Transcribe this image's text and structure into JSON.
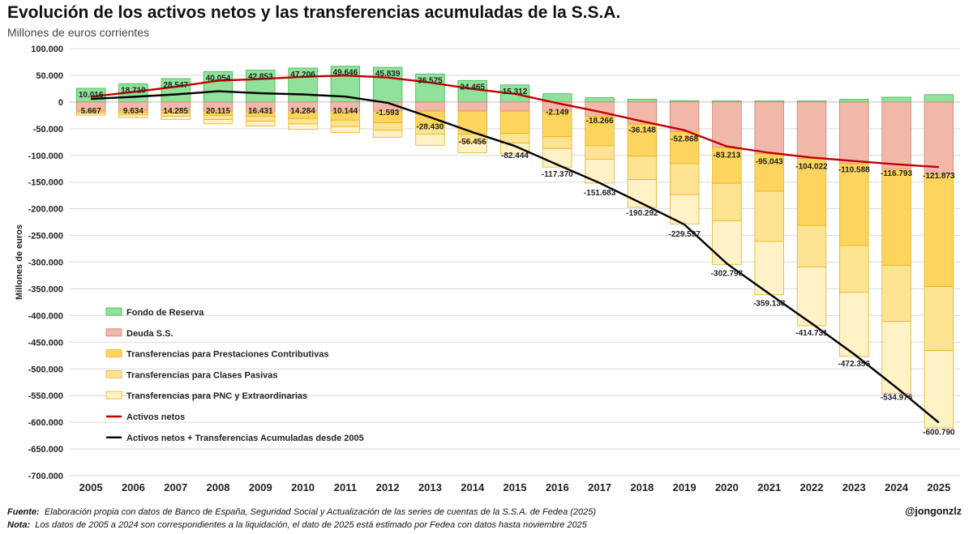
{
  "title": "Evolución de los activos netos y las transferencias acumuladas de la S.S.A.",
  "subtitle": "Millones de euros corrientes",
  "footer": {
    "source_label": "Fuente:",
    "source_text": "Elaboración propia con datos de Banco de España, Seguridad Social y Actualización de las series de cuentas de la S.S.A. de Fedea (2025)",
    "note_label": "Nota:",
    "note_text": "Los datos de 2005 a 2024 son correspondientes a la liquidación, el dato de 2025 está estimado por Fedea con datos hasta noviembre 2025",
    "handle": "@jongonzlz"
  },
  "colors": {
    "fondo": "#90e29a",
    "fondo_stroke": "#3fb64e",
    "deuda": "#f1b8aa",
    "deuda_stroke": "#c9806f",
    "contrib": "#fdd45e",
    "clases": "#fde392",
    "pnc": "#fef2c6",
    "transfer_stroke": "#e6b020",
    "activos_line": "#c00000",
    "acumuladas_line": "#000000",
    "grid": "#d9d9d9"
  },
  "chart_data": {
    "type": "bar",
    "title": "Evolución de los activos netos y las transferencias acumuladas de la S.S.A.",
    "ylabel": "Millones de euros",
    "xlabel": "",
    "ylim": [
      -700000,
      100000
    ],
    "ytick_step": 50000,
    "ytick_labels": [
      "100.000",
      "50.000",
      "0",
      "-50.000",
      "-100.000",
      "-150.000",
      "-200.000",
      "-250.000",
      "-300.000",
      "-350.000",
      "-400.000",
      "-450.000",
      "-500.000",
      "-550.000",
      "-600.000",
      "-650.000",
      "-700.000"
    ],
    "categories": [
      "2005",
      "2006",
      "2007",
      "2008",
      "2009",
      "2010",
      "2011",
      "2012",
      "2013",
      "2014",
      "2015",
      "2016",
      "2017",
      "2018",
      "2019",
      "2020",
      "2021",
      "2022",
      "2023",
      "2024",
      "2025"
    ],
    "series": [
      {
        "name": "Fondo de Reserva",
        "kind": "bar",
        "values": [
          25700,
          34100,
          43900,
          57000,
          59700,
          63600,
          67000,
          65000,
          52500,
          40400,
          32000,
          15500,
          8000,
          5300,
          2500,
          2100,
          2100,
          2100,
          5100,
          9000,
          13700
        ]
      },
      {
        "name": "Deuda S.S.",
        "kind": "bar",
        "values": [
          -15600,
          -15600,
          -15600,
          -17000,
          -17000,
          -17000,
          -17000,
          -17000,
          -17000,
          -17000,
          -17000,
          -17000,
          -27000,
          -41400,
          -55400,
          -85300,
          -97100,
          -106100,
          -115700,
          -125800,
          -135600
        ]
      },
      {
        "name": "Transferencias para Prestaciones Contributivas",
        "kind": "bar",
        "values": [
          -2000,
          -4000,
          -5000,
          -8000,
          -10000,
          -14000,
          -17000,
          -22000,
          -28000,
          -43000,
          -42000,
          -48000,
          -55000,
          -60000,
          -60000,
          -67000,
          -70000,
          -125000,
          -153000,
          -180000,
          -210000
        ]
      },
      {
        "name": "Transferencias para Clases Pasivas",
        "kind": "bar",
        "values": [
          -3000,
          -4500,
          -6000,
          -8000,
          -9000,
          -10000,
          -12000,
          -14000,
          -15000,
          -15000,
          -18000,
          -22000,
          -25000,
          -44000,
          -58000,
          -70000,
          -94000,
          -78000,
          -88000,
          -105000,
          -120000
        ]
      },
      {
        "name": "Transferencias para PNC y Extraordinarias",
        "kind": "bar",
        "values": [
          -4000,
          -5000,
          -6000,
          -8000,
          -9000,
          -10000,
          -11000,
          -13000,
          -21000,
          -20000,
          -20000,
          -35000,
          -45000,
          -52000,
          -55000,
          -82000,
          -100000,
          -110000,
          -120000,
          -135000,
          -145000
        ]
      },
      {
        "name": "Activos netos",
        "kind": "line",
        "values": [
          10016,
          18710,
          28547,
          40054,
          42853,
          47206,
          49646,
          45839,
          36575,
          24465,
          15312,
          -2149,
          -18266,
          -36148,
          -52868,
          -83213,
          -95043,
          -104022,
          -110588,
          -116793,
          -121873
        ]
      },
      {
        "name": "Activos netos + Transferencias Acumuladas desde 2005",
        "kind": "line",
        "values": [
          5667,
          9634,
          14285,
          20115,
          16431,
          14284,
          10144,
          -1593,
          -28430,
          -56456,
          -82444,
          -117370,
          -151683,
          -190292,
          -229597,
          -302798,
          -359138,
          -414731,
          -472356,
          -534976,
          -600790
        ]
      }
    ],
    "labels_activos": [
      "10.016",
      "18.710",
      "28.547",
      "40.054",
      "42.853",
      "47.206",
      "49.646",
      "45.839",
      "36.575",
      "24.465",
      "15.312",
      "-2.149",
      "-18.266",
      "-36.148",
      "-52.868",
      "-83.213",
      "-95.043",
      "-104.022",
      "-110.588",
      "-116.793",
      "-121.873"
    ],
    "labels_acumuladas": [
      "5.667",
      "9.634",
      "14.285",
      "20.115",
      "16.431",
      "14.284",
      "10.144",
      "-1.593",
      "-28.430",
      "-56.456",
      "-82.444",
      "-117.370",
      "-151.683",
      "-190.292",
      "-229.597",
      "-302.798",
      "-359.138",
      "-414.731",
      "-472.356",
      "-534.976",
      "-600.790"
    ],
    "legend_position": "left",
    "legend": [
      "Fondo de Reserva",
      "Deuda S.S.",
      "Transferencias para Prestaciones Contributivas",
      "Transferencias para Clases Pasivas",
      "Transferencias para PNC y Extraordinarias",
      "Activos netos",
      "Activos netos + Transferencias Acumuladas desde 2005"
    ]
  }
}
